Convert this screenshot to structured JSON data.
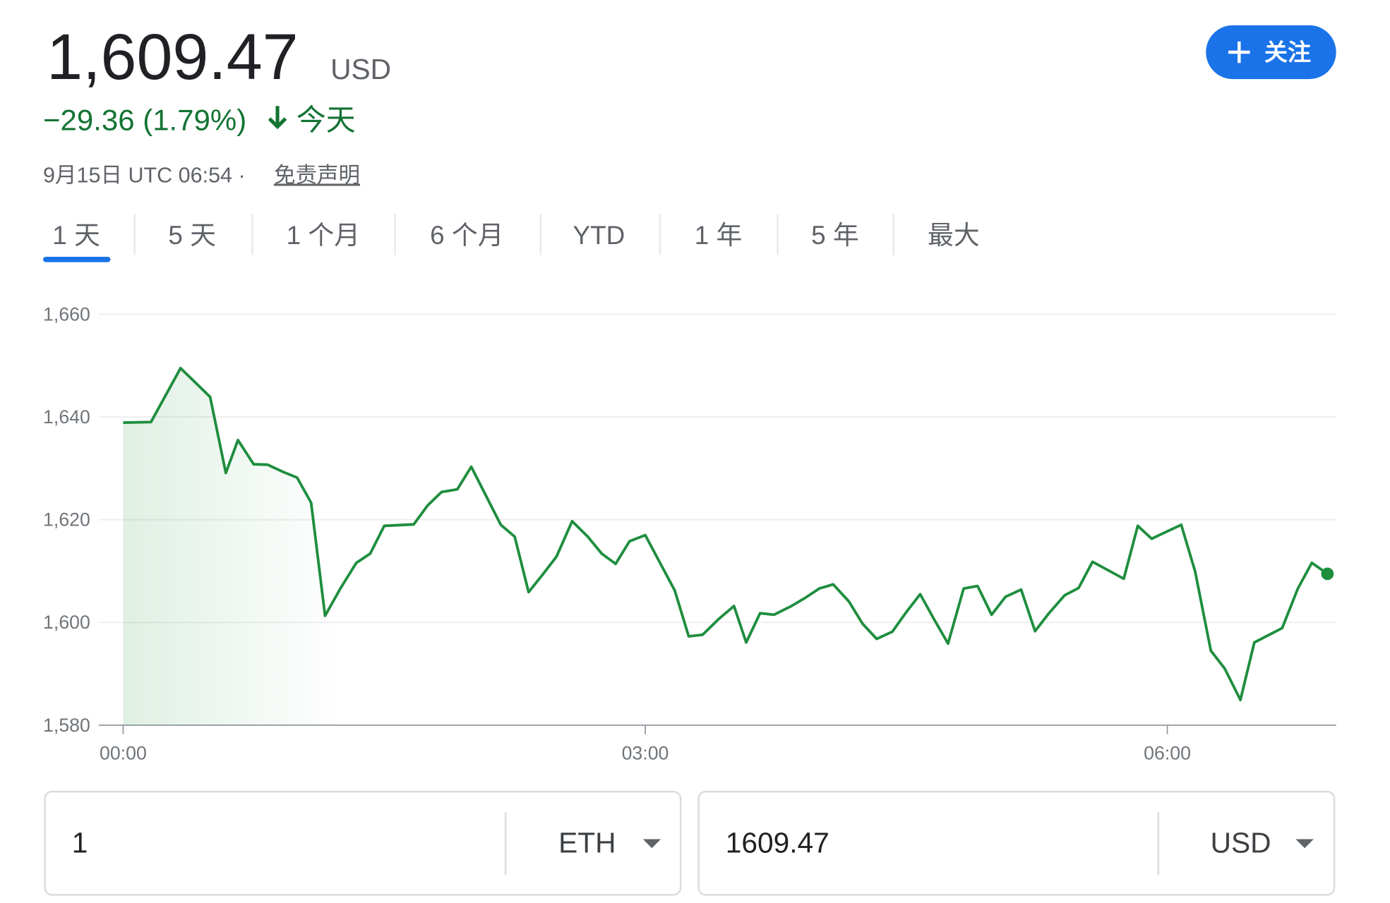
{
  "header": {
    "price": "1,609.47",
    "currency": "USD",
    "change": "−29.36 (1.79%)",
    "period": "今天",
    "timestamp": "9月15日 UTC 06:54 ·",
    "disclaimer": "免责声明",
    "follow_button": "关注"
  },
  "tabs": [
    "1 天",
    "5 天",
    "1 个月",
    "6 个月",
    "YTD",
    "1 年",
    "5 年",
    "最大"
  ],
  "chart_data": {
    "type": "line",
    "color": "#1e8e3e",
    "x": [
      0,
      0.16,
      0.33,
      0.5,
      0.59,
      0.66,
      0.75,
      0.83,
      0.92,
      1.0,
      1.08,
      1.16,
      1.25,
      1.34,
      1.42,
      1.5,
      1.67,
      1.75,
      1.83,
      1.92,
      2.0,
      2.17,
      2.25,
      2.33,
      2.41,
      2.49,
      2.58,
      2.67,
      2.75,
      2.83,
      2.91,
      3.0,
      3.17,
      3.25,
      3.33,
      3.42,
      3.51,
      3.58,
      3.66,
      3.74,
      3.84,
      3.92,
      4.0,
      4.08,
      4.17,
      4.25,
      4.33,
      4.42,
      4.5,
      4.58,
      4.66,
      4.74,
      4.83,
      4.91,
      4.99,
      5.07,
      5.16,
      5.24,
      5.32,
      5.41,
      5.49,
      5.57,
      5.75,
      5.83,
      5.91,
      6.08,
      6.16,
      6.25,
      6.33,
      6.42,
      6.5,
      6.66,
      6.75,
      6.83,
      6.92
    ],
    "values": [
      1638.9,
      1639.0,
      1649.5,
      1643.9,
      1629.1,
      1635.5,
      1630.8,
      1630.7,
      1629.3,
      1628.2,
      1623.3,
      1601.3,
      1606.7,
      1611.6,
      1613.4,
      1618.8,
      1619.1,
      1622.8,
      1625.4,
      1625.9,
      1630.3,
      1619.0,
      1616.7,
      1605.9,
      1609.3,
      1612.8,
      1619.7,
      1616.7,
      1613.4,
      1611.4,
      1615.8,
      1617.0,
      1606.2,
      1597.3,
      1597.6,
      1600.6,
      1603.2,
      1596.1,
      1601.8,
      1601.5,
      1603.2,
      1604.8,
      1606.6,
      1607.4,
      1604.1,
      1599.7,
      1596.8,
      1598.2,
      1602.0,
      1605.5,
      1600.6,
      1595.9,
      1606.6,
      1607.1,
      1601.5,
      1605.0,
      1606.4,
      1598.3,
      1601.8,
      1605.3,
      1606.7,
      1611.8,
      1608.5,
      1618.8,
      1616.3,
      1619.0,
      1609.9,
      1594.5,
      1591.0,
      1584.9,
      1596.1,
      1598.9,
      1606.6,
      1611.6,
      1609.47
    ],
    "xlim": [
      -0.14,
      6.97
    ],
    "xticks": [
      {
        "value": 0,
        "label": "00:00"
      },
      {
        "value": 3,
        "label": "03:00"
      },
      {
        "value": 6,
        "label": "06:00"
      }
    ],
    "ylim": [
      1580,
      1660
    ],
    "yticks": [
      {
        "value": 1580,
        "label": "1,580"
      },
      {
        "value": 1600,
        "label": "1,600"
      },
      {
        "value": 1620,
        "label": "1,620"
      },
      {
        "value": 1640,
        "label": "1,640"
      },
      {
        "value": 1660,
        "label": "1,660"
      }
    ],
    "grid": true
  },
  "converter": {
    "from_amount": "1",
    "from_currency": "ETH",
    "to_amount": "1609.47",
    "to_currency": "USD"
  }
}
